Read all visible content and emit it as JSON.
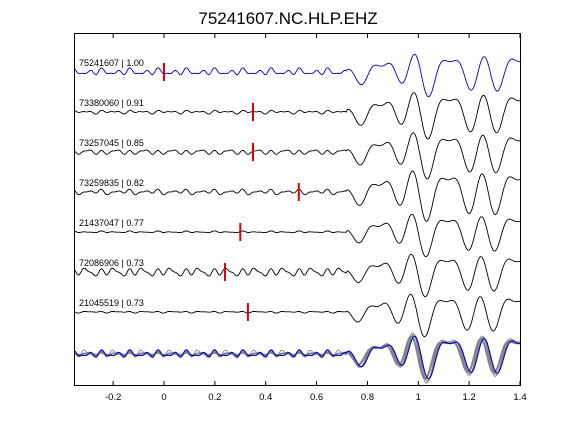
{
  "chart_data": {
    "type": "line",
    "title": "75241607.NC.HLP.EHZ",
    "xlabel": "",
    "ylabel": "",
    "xlim": [
      -0.35,
      1.4
    ],
    "x_ticks": [
      -0.2,
      0,
      0.2,
      0.4,
      0.6,
      0.8,
      1,
      1.2,
      1.4
    ],
    "x_tick_labels": [
      "-0.2",
      "0",
      "0.2",
      "0.4",
      "0.6",
      "0.8",
      "1",
      "1.2",
      "1.4"
    ],
    "y_ticks_visible": false,
    "grid": false,
    "legend": "none",
    "series": [
      {
        "name": "75241607",
        "cc": "1.00",
        "label": "75241607 | 1.00",
        "color": "#0000cc",
        "pick_x": 0.0,
        "pre_amp": 4,
        "post_amp": 22
      },
      {
        "name": "73380060",
        "cc": "0.91",
        "label": "73380060 | 0.91",
        "color": "#000000",
        "pick_x": 0.35,
        "pre_amp": 2,
        "post_amp": 24
      },
      {
        "name": "73257045",
        "cc": "0.85",
        "label": "73257045 | 0.85",
        "color": "#000000",
        "pick_x": 0.35,
        "pre_amp": 3,
        "post_amp": 24
      },
      {
        "name": "73259835",
        "cc": "0.82",
        "label": "73259835 | 0.82",
        "color": "#000000",
        "pick_x": 0.53,
        "pre_amp": 3,
        "post_amp": 26
      },
      {
        "name": "21437047",
        "cc": "0.77",
        "label": "21437047 | 0.77",
        "color": "#000000",
        "pick_x": 0.3,
        "pre_amp": 1,
        "post_amp": 22
      },
      {
        "name": "72086906",
        "cc": "0.73",
        "label": "72086906 | 0.73",
        "color": "#000000",
        "pick_x": 0.24,
        "pre_amp": 5,
        "post_amp": 22
      },
      {
        "name": "21045519",
        "cc": "0.73",
        "label": "21045519 | 0.73",
        "color": "#000000",
        "pick_x": 0.33,
        "pre_amp": 1,
        "post_amp": 22
      }
    ],
    "stack": {
      "reference_color": "#0000cc",
      "others_color": "#808080"
    },
    "pick_color": "#dd0000"
  }
}
